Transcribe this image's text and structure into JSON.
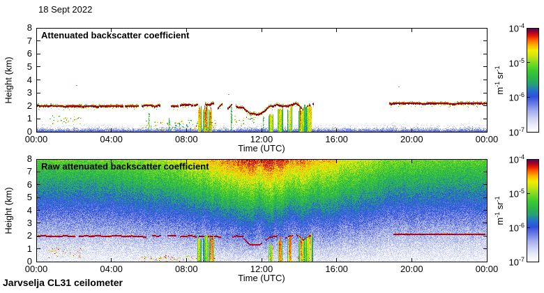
{
  "header": {
    "date": "18 Sept 2022"
  },
  "footer": {
    "instrument": "Jarvselja CL31 ceilometer"
  },
  "colors": {
    "background": "#ffffff",
    "axis": "#000000",
    "text": "#000000",
    "colormap_stops": [
      [
        0.0,
        "#ffffff"
      ],
      [
        0.06,
        "#eceef9"
      ],
      [
        0.13,
        "#cdd3f4"
      ],
      [
        0.2,
        "#a2aeee"
      ],
      [
        0.27,
        "#6b7ce8"
      ],
      [
        0.34,
        "#3050dc"
      ],
      [
        0.4,
        "#2472c8"
      ],
      [
        0.46,
        "#28a078"
      ],
      [
        0.52,
        "#2cb44c"
      ],
      [
        0.6,
        "#3fcc30"
      ],
      [
        0.68,
        "#8cdc1e"
      ],
      [
        0.74,
        "#d2e614"
      ],
      [
        0.79,
        "#f0ee00"
      ],
      [
        0.84,
        "#ffb400"
      ],
      [
        0.89,
        "#ff6400"
      ],
      [
        0.93,
        "#e61e00"
      ],
      [
        0.97,
        "#a00028"
      ],
      [
        1.0,
        "#5a0a50"
      ]
    ]
  },
  "chart_data": [
    {
      "type": "heatmap",
      "title": "Attenuated backscatter coefficient",
      "xlabel": "Time (UTC)",
      "ylabel": "Height (km)",
      "x_ticks": [
        "00:00",
        "04:00",
        "08:00",
        "12:00",
        "16:00",
        "20:00",
        "00:00"
      ],
      "x_range_hours": [
        0,
        24
      ],
      "y_ticks": [
        0,
        1,
        2,
        3,
        4,
        5,
        6,
        7,
        8
      ],
      "y_range_km": [
        0,
        8
      ],
      "grid": false,
      "colorbar": {
        "ticks": [
          "10^-4",
          "10^-5",
          "10^-6",
          "10^-7"
        ],
        "unit": "m^-1 sr^-1",
        "min": 1e-07,
        "max": 0.0001,
        "scale": "log",
        "position": "right"
      },
      "features": {
        "boundary_layer": {
          "top_km_mean": 0.45,
          "top_km_variation": 0.2,
          "value_u": 0.3
        },
        "cloud_layers": [
          {
            "t": [
              0.0,
              5.4
            ],
            "base_pts": [
              [
                0,
                2.0
              ],
              [
                5.4,
                2.0
              ]
            ],
            "coverage": 0.97,
            "wobble_km": 0.05
          },
          {
            "t": [
              5.4,
              8.3
            ],
            "base_pts": [
              [
                5.4,
                2.0
              ],
              [
                8.3,
                2.05
              ]
            ],
            "coverage": 0.6,
            "wobble_km": 0.12
          },
          {
            "t": [
              8.3,
              9.6
            ],
            "base_pts": [
              [
                8.3,
                2.1
              ],
              [
                9.6,
                2.05
              ]
            ],
            "coverage": 0.5,
            "wobble_km": 0.2
          },
          {
            "t": [
              9.6,
              11.0
            ],
            "base_pts": [
              [
                9.6,
                2.0
              ],
              [
                11.0,
                2.0
              ]
            ],
            "coverage": 0.45,
            "wobble_km": 0.25
          },
          {
            "t": [
              11.0,
              12.35
            ],
            "base_pts": [
              [
                11.0,
                1.95
              ],
              [
                11.35,
                1.4
              ],
              [
                11.85,
                1.35
              ],
              [
                12.35,
                1.9
              ]
            ],
            "coverage": 0.85,
            "wobble_km": 0.1
          },
          {
            "t": [
              12.35,
              14.75
            ],
            "base_pts": [
              [
                12.35,
                1.95
              ],
              [
                12.8,
                2.1
              ],
              [
                13.3,
                1.95
              ],
              [
                13.8,
                2.2
              ],
              [
                14.2,
                1.75
              ],
              [
                14.5,
                2.0
              ],
              [
                14.75,
                2.1
              ]
            ],
            "coverage": 0.8,
            "wobble_km": 0.12
          },
          {
            "t": [
              18.8,
              19.05
            ],
            "base_pts": [
              [
                18.8,
                2.2
              ],
              [
                19.05,
                2.2
              ]
            ],
            "coverage": 0.3,
            "wobble_km": 0.05
          },
          {
            "t": [
              19.05,
              24.0
            ],
            "base_pts": [
              [
                19.05,
                2.2
              ],
              [
                24,
                2.2
              ]
            ],
            "coverage": 0.97,
            "wobble_km": 0.04
          }
        ],
        "precipitation_streaks": [
          {
            "t": [
              8.55,
              8.78
            ],
            "top_km": 2.0
          },
          {
            "t": [
              8.85,
              9.1
            ],
            "top_km": 2.05
          },
          {
            "t": [
              9.15,
              9.45
            ],
            "top_km": 1.9
          },
          {
            "t": [
              12.35,
              12.6
            ],
            "top_km": 1.55
          },
          {
            "t": [
              12.85,
              13.1
            ],
            "top_km": 1.85
          },
          {
            "t": [
              13.35,
              13.6
            ],
            "top_km": 1.95
          },
          {
            "t": [
              13.95,
              14.3
            ],
            "top_km": 2.0
          },
          {
            "t": [
              14.3,
              14.7
            ],
            "top_km": 2.1
          }
        ],
        "thin_updraft_spikes": [
          {
            "t": 5.95,
            "top_km": 1.5
          },
          {
            "t": 7.05,
            "top_km": 1.1
          },
          {
            "t": 10.35,
            "top_km": 2.0
          },
          {
            "t": 12.05,
            "top_km": 1.2
          }
        ],
        "low_level_scatter": [
          {
            "t": [
              0.6,
              2.4
            ],
            "h": [
              0.55,
              1.25
            ]
          },
          {
            "t": [
              5.6,
              9.6
            ],
            "h": [
              0.1,
              0.9
            ]
          },
          {
            "t": [
              10.3,
              11.6
            ],
            "h": [
              0.5,
              1.3
            ]
          }
        ],
        "stray_dots": [
          [
            2.1,
            3.6
          ],
          [
            10.2,
            2.9
          ],
          [
            19.3,
            3.5
          ]
        ]
      }
    },
    {
      "type": "heatmap",
      "title": "Raw attenuated backscatter coefficient",
      "xlabel": "Time (UTC)",
      "ylabel": "Height (km)",
      "x_ticks": [
        "00:00",
        "04:00",
        "08:00",
        "12:00",
        "16:00",
        "20:00",
        "00:00"
      ],
      "x_range_hours": [
        0,
        24
      ],
      "y_ticks": [
        0,
        1,
        2,
        3,
        4,
        5,
        6,
        7,
        8
      ],
      "y_range_km": [
        0,
        8
      ],
      "grid": false,
      "colorbar": {
        "ticks": [
          "10^-4",
          "10^-5",
          "10^-6",
          "10^-7"
        ],
        "unit": "m^-1 sr^-1",
        "min": 1e-07,
        "max": 0.0001,
        "scale": "log",
        "position": "right"
      },
      "features": {
        "noise_field": {
          "night_top_u": 0.62,
          "daylight_boost_u": 0.3,
          "daylight_peak_hour": 12.2,
          "daylight_sigma_hours": 3.4,
          "height_exponent": 1.12,
          "speckle_amplitude_u": 0.165,
          "vertical_banding_u": 0.075
        },
        "cloud_layers": [
          {
            "t": [
              0.0,
              5.4
            ],
            "base_pts": [
              [
                0,
                2.05
              ],
              [
                5.4,
                2.05
              ]
            ],
            "coverage": 0.88,
            "wobble_km": 0.04
          },
          {
            "t": [
              5.4,
              11.0
            ],
            "base_pts": [
              [
                5.4,
                2.05
              ],
              [
                11.0,
                2.0
              ]
            ],
            "coverage": 0.55,
            "wobble_km": 0.1
          },
          {
            "t": [
              11.0,
              12.35
            ],
            "base_pts": [
              [
                11.0,
                1.95
              ],
              [
                11.35,
                1.4
              ],
              [
                11.85,
                1.35
              ],
              [
                12.35,
                1.9
              ]
            ],
            "coverage": 0.7,
            "wobble_km": 0.08
          },
          {
            "t": [
              12.35,
              14.75
            ],
            "base_pts": [
              [
                12.35,
                1.95
              ],
              [
                12.8,
                2.1
              ],
              [
                13.3,
                1.95
              ],
              [
                13.8,
                2.2
              ],
              [
                14.2,
                1.75
              ],
              [
                14.5,
                2.0
              ],
              [
                14.75,
                2.1
              ]
            ],
            "coverage": 0.7,
            "wobble_km": 0.1
          },
          {
            "t": [
              19.0,
              24.0
            ],
            "base_pts": [
              [
                19.0,
                2.2
              ],
              [
                24,
                2.2
              ]
            ],
            "coverage": 0.95,
            "wobble_km": 0.03
          }
        ],
        "precipitation_streaks": [
          {
            "t": [
              8.55,
              8.78
            ],
            "top_km": 2.0
          },
          {
            "t": [
              8.85,
              9.1
            ],
            "top_km": 2.05
          },
          {
            "t": [
              9.15,
              9.45
            ],
            "top_km": 1.9
          },
          {
            "t": [
              12.35,
              12.6
            ],
            "top_km": 1.55
          },
          {
            "t": [
              12.85,
              13.1
            ],
            "top_km": 1.85
          },
          {
            "t": [
              13.35,
              13.6
            ],
            "top_km": 1.95
          },
          {
            "t": [
              13.95,
              14.3
            ],
            "top_km": 2.0
          },
          {
            "t": [
              14.3,
              14.7
            ],
            "top_km": 2.1
          }
        ],
        "ground_echo_dots": [
          {
            "t": [
              0.6,
              2.4
            ],
            "h": [
              0.3,
              1.1
            ],
            "density": 0.02
          },
          {
            "t": [
              5.5,
              9.6
            ],
            "h": [
              0.0,
              0.5
            ],
            "density": 0.03
          },
          {
            "t": [
              12.2,
              14.7
            ],
            "h": [
              0.0,
              0.4
            ],
            "density": 0.03
          }
        ]
      }
    }
  ]
}
